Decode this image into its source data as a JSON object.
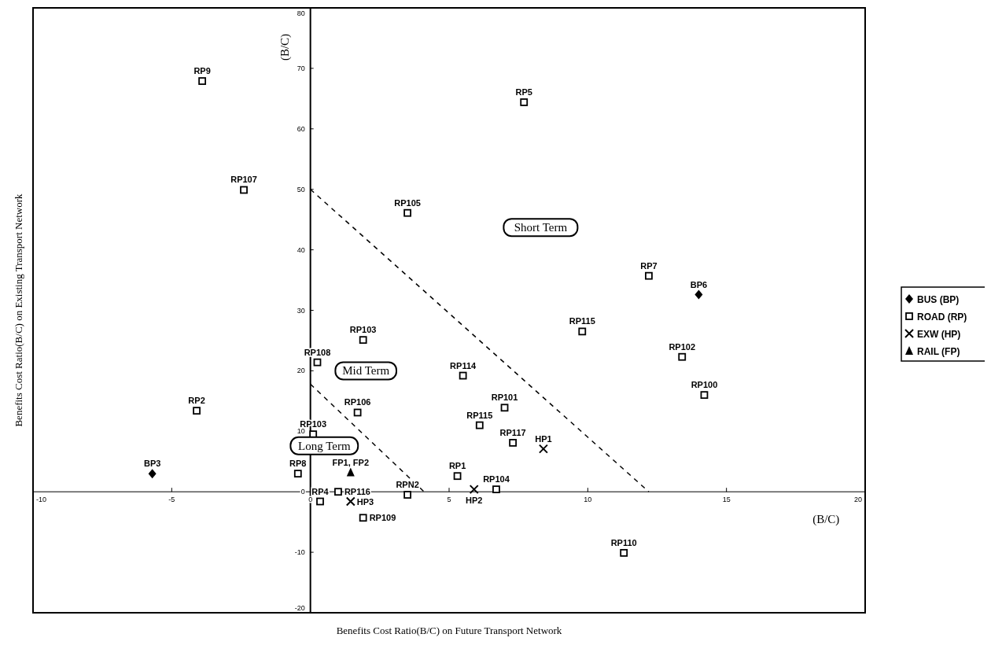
{
  "chart_data": {
    "type": "scatter",
    "xlabel": "Benefits Cost Ratio(B/C) on Future Transport Network",
    "ylabel": "Benefits Cost Ratio(B/C) on Existing Transport Network",
    "xlim": [
      -10,
      20
    ],
    "xticks": [
      -10,
      -5,
      0,
      5,
      10,
      15,
      20
    ],
    "ylim": [
      -20,
      80
    ],
    "yticks": [
      -20,
      -10,
      0,
      10,
      20,
      30,
      40,
      50,
      60,
      70,
      80
    ],
    "grid": false,
    "legend": "right",
    "series": [
      {
        "name": "BUS (BP)",
        "color": "#000000",
        "marker": "diamond",
        "x": [
          -5.7,
          14.0
        ],
        "values": [
          3.0,
          32.6
        ],
        "value_labels": [
          "BP3",
          "BP6"
        ]
      },
      {
        "name": "ROAD (RP)",
        "color": "#000000",
        "marker": "square",
        "x": [
          -3.9,
          -2.4,
          7.7,
          3.5,
          12.2,
          9.8,
          13.4,
          14.2,
          1.9,
          0.25,
          5.5,
          -4.1,
          1.7,
          7.0,
          6.1,
          0.1,
          7.3,
          -0.45,
          5.3,
          1.0,
          3.5,
          6.7,
          0.35,
          1.9,
          11.3
        ],
        "values": [
          67.9,
          49.9,
          64.4,
          46.1,
          35.7,
          26.5,
          22.3,
          16.0,
          25.1,
          21.4,
          19.2,
          13.4,
          13.1,
          13.9,
          11.0,
          9.5,
          8.1,
          3.0,
          2.6,
          0.0,
          -0.5,
          0.4,
          -1.6,
          -4.3,
          -10.1
        ],
        "value_labels": [
          "RP9",
          "RP107",
          "RP5",
          "RP105",
          "RP7",
          "RP115",
          "RP102",
          "RP100",
          "RP103",
          "RP108",
          "RP114",
          "RP2",
          "RP106",
          "RP101",
          "RP115",
          "RP103",
          "RP117",
          "RP8",
          "RP1",
          "RP116",
          "RPN2",
          "RP104",
          "RP4",
          "RP109",
          "RP110"
        ]
      },
      {
        "name": "EXW (HP)",
        "color": "#000000",
        "marker": "cross",
        "x": [
          8.4,
          5.9,
          1.45
        ],
        "values": [
          7.1,
          0.4,
          -1.6
        ],
        "value_labels": [
          "HP1",
          "HP2",
          "HP3"
        ]
      },
      {
        "name": "RAIL (FP)",
        "color": "#000000",
        "marker": "triangle",
        "x": [
          1.45
        ],
        "values": [
          3.2
        ],
        "value_labels": [
          "FP1, FP2"
        ]
      },
      {
        "type": "line",
        "color": "#000000",
        "line_style": "dashed",
        "x": [
          0,
          4.1
        ],
        "values": [
          17.8,
          0
        ]
      },
      {
        "type": "line",
        "color": "#000000",
        "line_style": "dashed",
        "x": [
          0,
          12.2
        ],
        "values": [
          50,
          0
        ]
      }
    ],
    "annotations": [
      "Short Term",
      "Mid Term",
      "Long Term",
      "(B/C)",
      "(B/C)"
    ]
  }
}
